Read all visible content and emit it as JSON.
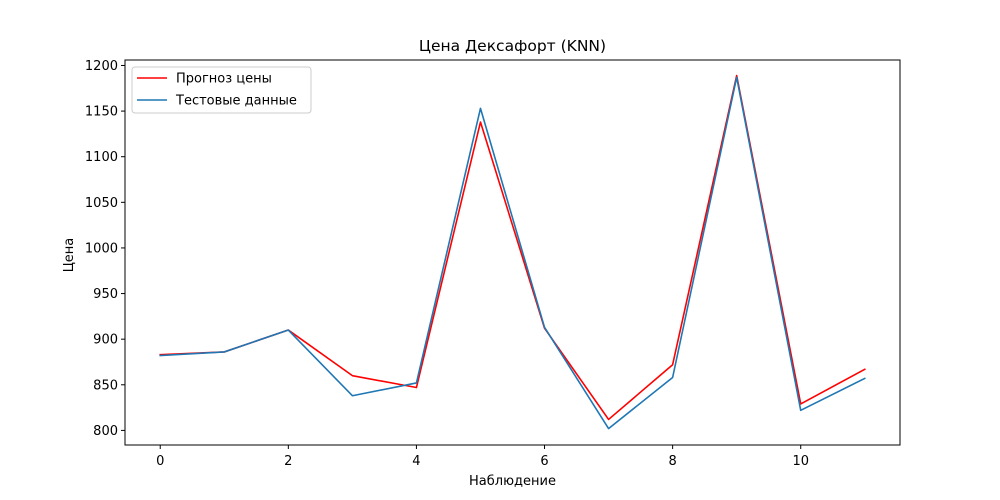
{
  "chart_data": {
    "type": "line",
    "title": "Цена Дексафорт  (KNN)",
    "xlabel": "Наблюдение",
    "ylabel": "Цена",
    "xlim": [
      -0.55,
      11.55
    ],
    "ylim": [
      784,
      1206
    ],
    "xticks": [
      0,
      2,
      4,
      6,
      8,
      10
    ],
    "yticks": [
      800,
      850,
      900,
      950,
      1000,
      1050,
      1100,
      1150,
      1200
    ],
    "grid": false,
    "legend_position": "top-left",
    "x": [
      0,
      1,
      2,
      3,
      4,
      5,
      6,
      7,
      8,
      9,
      10,
      11
    ],
    "series": [
      {
        "name": "Прогноз цены",
        "color": "#ff0000",
        "values": [
          883,
          886,
          910,
          860,
          847,
          1138,
          912,
          812,
          872,
          1189,
          829,
          867
        ]
      },
      {
        "name": "Тестовые данные",
        "color": "#1f77b4",
        "values": [
          882,
          886,
          910,
          838,
          852,
          1153,
          913,
          802,
          858,
          1187,
          822,
          857
        ]
      }
    ]
  }
}
